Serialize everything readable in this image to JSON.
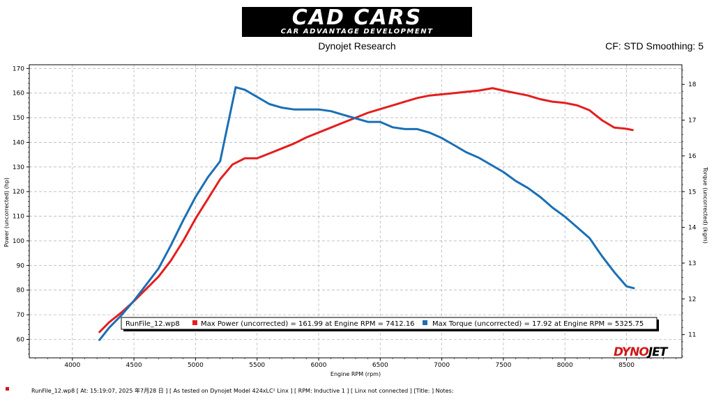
{
  "header": {
    "logo_main": "CAD CARS",
    "logo_sub": "CAR ADVANTAGE DEVELOPMENT",
    "subtitle": "Dynojet Research",
    "cf": "CF: STD Smoothing: 5"
  },
  "brand": {
    "part1": "DYNO",
    "part2": "JET"
  },
  "footer": {
    "text": "RunFile_12.wp8  [  At:  15:19:07,  2025 年7月28 日  ] [ As tested on Dynojet Model 424xLC² Linx ] [ RPM: Inductive 1 ] [ Linx not connected ] [Title:  ]   Notes:"
  },
  "colors": {
    "power": "#e41e1e",
    "torque": "#1a6fb5",
    "grid": "#b8b8b8"
  },
  "chart_data": {
    "type": "line",
    "xlabel": "Engine RPM (rpm)",
    "ylabel": "Power (uncorrected) (hp)",
    "y2label": "Torque (uncorrected) (kgm)",
    "xlim": [
      3650,
      8950
    ],
    "ylim": [
      52.5,
      171.5
    ],
    "y2lim": [
      10.35,
      18.55
    ],
    "xticks": [
      "4000",
      "4500",
      "5000",
      "5500",
      "6000",
      "6500",
      "7000",
      "7500",
      "8000",
      "8500"
    ],
    "yticks": [
      "60",
      "70",
      "80",
      "90",
      "100",
      "110",
      "120",
      "130",
      "140",
      "150",
      "160",
      "170"
    ],
    "y2ticks": [
      "11",
      "12",
      "13",
      "14",
      "15",
      "16",
      "17",
      "18"
    ],
    "grid": true,
    "legend": {
      "file": "RunFile_12.wp8",
      "entries": [
        "Max Power (uncorrected) = 161.99 at Engine RPM = 7412.16",
        "Max Torque (uncorrected) = 17.92 at Engine RPM = 5325.75"
      ],
      "placement": "bottom-center"
    },
    "series": [
      {
        "key": "power",
        "axis": "left",
        "x": [
          4220,
          4300,
          4400,
          4500,
          4600,
          4700,
          4800,
          4900,
          5000,
          5100,
          5200,
          5300,
          5400,
          5500,
          5600,
          5700,
          5800,
          5900,
          6000,
          6100,
          6200,
          6300,
          6400,
          6500,
          6600,
          6700,
          6800,
          6900,
          7000,
          7100,
          7200,
          7300,
          7412,
          7500,
          7600,
          7700,
          7800,
          7900,
          8000,
          8100,
          8200,
          8300,
          8400,
          8500,
          8550
        ],
        "y": [
          63,
          67,
          71,
          75.5,
          80.5,
          85.5,
          92,
          100,
          109,
          117,
          125,
          131,
          133.5,
          133.5,
          135.5,
          137.5,
          139.5,
          142,
          144,
          146,
          148,
          150,
          152,
          153.5,
          155,
          156.5,
          158,
          159,
          159.5,
          160,
          160.5,
          161,
          161.99,
          161,
          160,
          159,
          157.5,
          156.5,
          156,
          155,
          153,
          149,
          146,
          145.5,
          145
        ]
      },
      {
        "key": "torque",
        "axis": "right",
        "x": [
          4220,
          4300,
          4400,
          4500,
          4600,
          4700,
          4800,
          4900,
          5000,
          5100,
          5200,
          5326,
          5400,
          5500,
          5600,
          5700,
          5800,
          5900,
          6000,
          6100,
          6200,
          6300,
          6400,
          6500,
          6600,
          6700,
          6800,
          6900,
          7000,
          7100,
          7200,
          7300,
          7400,
          7500,
          7600,
          7700,
          7800,
          7900,
          8000,
          8100,
          8200,
          8300,
          8400,
          8500,
          8560
        ],
        "y": [
          10.85,
          11.2,
          11.55,
          11.95,
          12.4,
          12.85,
          13.5,
          14.2,
          14.85,
          15.4,
          15.85,
          17.92,
          17.85,
          17.65,
          17.45,
          17.35,
          17.3,
          17.3,
          17.3,
          17.25,
          17.15,
          17.05,
          16.95,
          16.95,
          16.8,
          16.75,
          16.75,
          16.65,
          16.5,
          16.3,
          16.1,
          15.95,
          15.75,
          15.55,
          15.3,
          15.1,
          14.85,
          14.55,
          14.3,
          14.0,
          13.7,
          13.2,
          12.75,
          12.35,
          12.3
        ]
      }
    ]
  }
}
